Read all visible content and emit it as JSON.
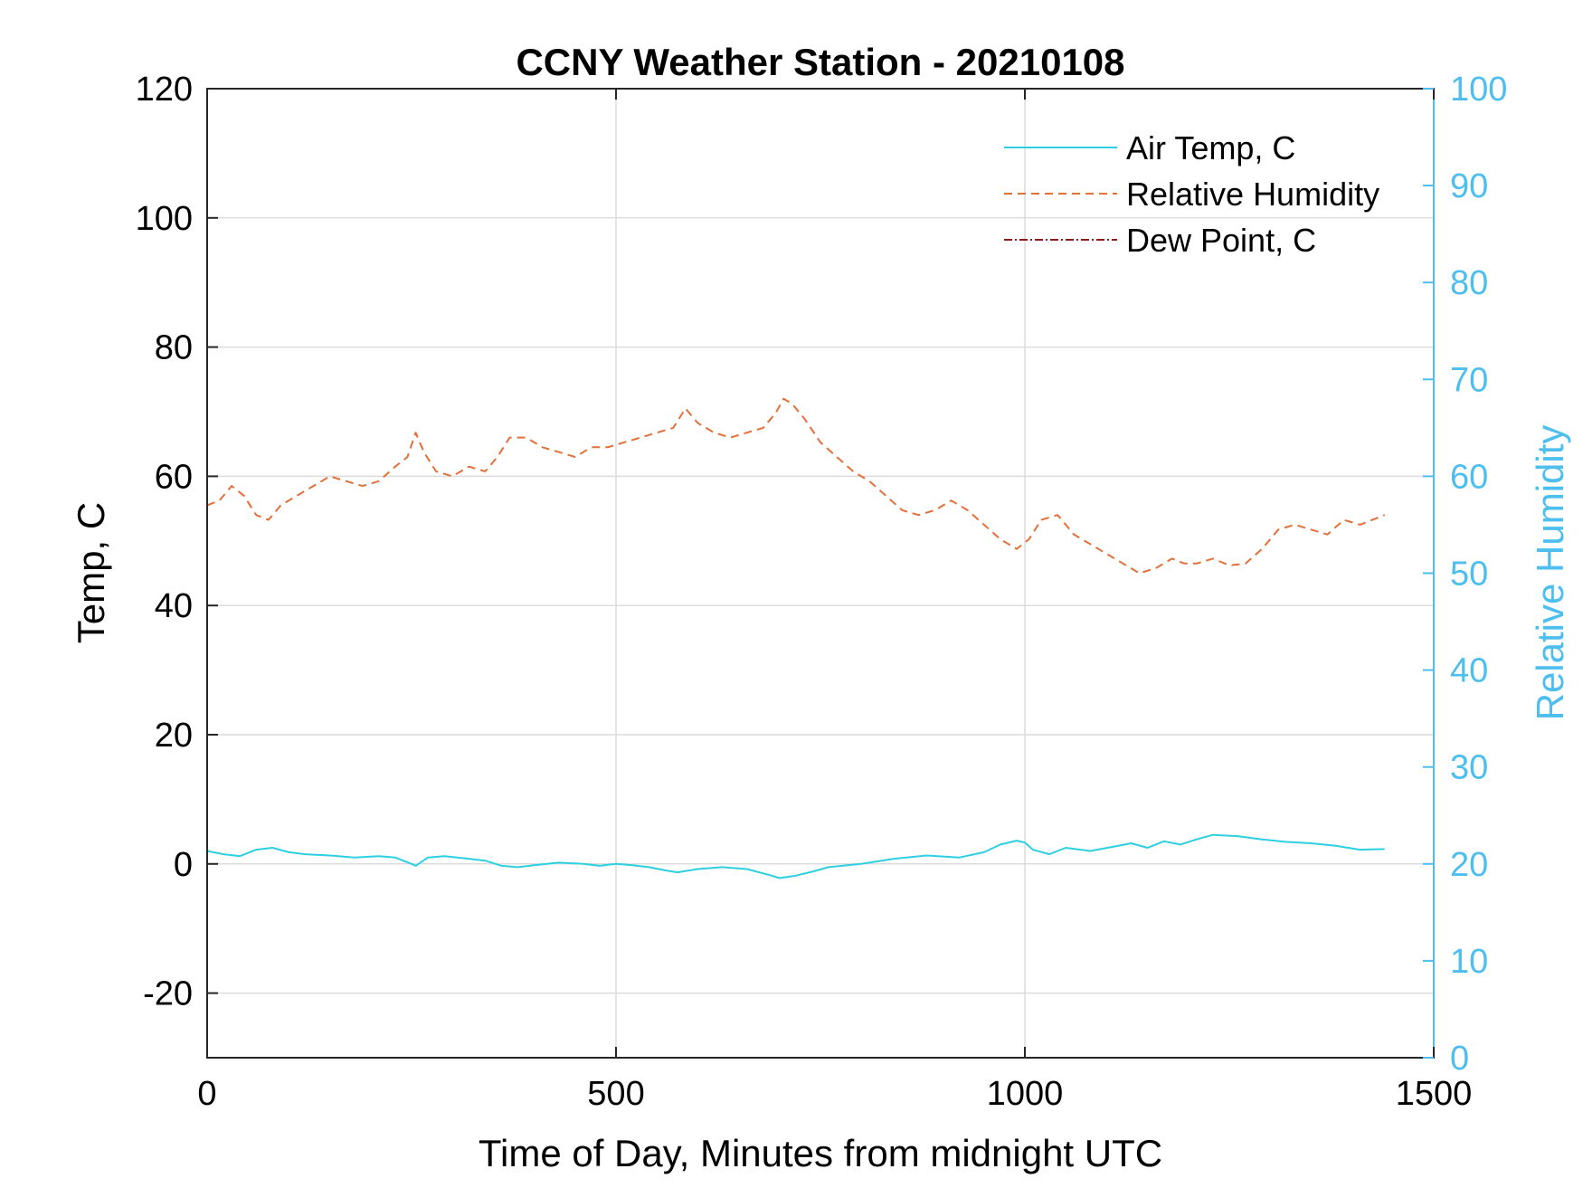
{
  "chart_data": {
    "type": "line",
    "title": "CCNY Weather Station - 20210108",
    "xlabel": "Time of Day, Minutes from midnight UTC",
    "ylabel_left": "Temp, C",
    "ylabel_right": "Relative Humidity",
    "xlim": [
      0,
      1500
    ],
    "ylim_left": [
      -30,
      120
    ],
    "ylim_right": [
      0,
      100
    ],
    "x_ticks": [
      "0",
      "500",
      "1000",
      "1500"
    ],
    "x_tick_values": [
      0,
      500,
      1000,
      1500
    ],
    "y_left_ticks": [
      "-20",
      "0",
      "20",
      "40",
      "60",
      "80",
      "100",
      "120"
    ],
    "y_left_tick_values": [
      -20,
      0,
      20,
      40,
      60,
      80,
      100,
      120
    ],
    "y_right_ticks": [
      "0",
      "10",
      "20",
      "30",
      "40",
      "50",
      "60",
      "70",
      "80",
      "90",
      "100"
    ],
    "y_right_tick_values": [
      0,
      10,
      20,
      30,
      40,
      50,
      60,
      70,
      80,
      90,
      100
    ],
    "grid": true,
    "legend_position": "top-right",
    "colors": {
      "air_temp": "#2ECFE0",
      "humidity": "#E2703A",
      "dew_point": "#8B1A1A",
      "right_axis": "#4DBEEE"
    },
    "series": [
      {
        "name": "Air Temp, C",
        "axis": "left",
        "style": "solid",
        "x": [
          0,
          20,
          40,
          60,
          80,
          100,
          120,
          150,
          180,
          210,
          230,
          250,
          255,
          270,
          290,
          320,
          340,
          360,
          380,
          400,
          430,
          460,
          480,
          500,
          520,
          540,
          560,
          575,
          600,
          630,
          660,
          690,
          700,
          720,
          740,
          760,
          800,
          840,
          880,
          920,
          950,
          970,
          990,
          1000,
          1010,
          1030,
          1050,
          1080,
          1110,
          1130,
          1150,
          1170,
          1190,
          1210,
          1230,
          1260,
          1290,
          1320,
          1350,
          1380,
          1410,
          1440
        ],
        "y": [
          2.0,
          1.5,
          1.2,
          2.2,
          2.5,
          1.8,
          1.5,
          1.3,
          1.0,
          1.2,
          1.0,
          0.0,
          -0.3,
          1.0,
          1.2,
          0.8,
          0.5,
          -0.3,
          -0.5,
          -0.2,
          0.2,
          0.0,
          -0.3,
          0.0,
          -0.2,
          -0.5,
          -1.0,
          -1.3,
          -0.8,
          -0.5,
          -0.8,
          -1.8,
          -2.2,
          -1.8,
          -1.2,
          -0.5,
          0.0,
          0.8,
          1.3,
          1.0,
          1.8,
          3.0,
          3.6,
          3.3,
          2.2,
          1.5,
          2.5,
          2.0,
          2.7,
          3.2,
          2.5,
          3.5,
          3.0,
          3.8,
          4.5,
          4.3,
          3.8,
          3.4,
          3.2,
          2.8,
          2.2,
          2.3
        ]
      },
      {
        "name": "Relative Humidity",
        "axis": "right",
        "style": "dashed",
        "x": [
          0,
          15,
          30,
          45,
          60,
          75,
          90,
          110,
          130,
          150,
          170,
          190,
          210,
          230,
          245,
          255,
          265,
          280,
          300,
          320,
          340,
          355,
          370,
          390,
          410,
          430,
          450,
          470,
          490,
          510,
          530,
          550,
          570,
          585,
          600,
          620,
          640,
          660,
          680,
          695,
          705,
          715,
          730,
          750,
          770,
          790,
          810,
          830,
          850,
          870,
          890,
          910,
          930,
          950,
          970,
          990,
          1005,
          1020,
          1040,
          1060,
          1080,
          1100,
          1120,
          1140,
          1160,
          1180,
          1195,
          1210,
          1230,
          1250,
          1270,
          1290,
          1310,
          1330,
          1350,
          1370,
          1390,
          1410,
          1440
        ],
        "y": [
          57.0,
          57.5,
          59.0,
          58.0,
          56.0,
          55.5,
          57.0,
          58.0,
          59.0,
          60.0,
          59.5,
          59.0,
          59.5,
          61.0,
          62.0,
          64.5,
          62.5,
          60.5,
          60.0,
          61.0,
          60.5,
          62.0,
          64.0,
          64.0,
          63.0,
          62.5,
          62.0,
          63.0,
          63.0,
          63.5,
          64.0,
          64.5,
          65.0,
          67.0,
          65.5,
          64.5,
          64.0,
          64.5,
          65.0,
          66.5,
          68.0,
          67.5,
          66.0,
          63.5,
          62.0,
          60.5,
          59.5,
          58.0,
          56.5,
          56.0,
          56.5,
          57.5,
          56.5,
          55.0,
          53.5,
          52.5,
          53.5,
          55.5,
          56.0,
          54.0,
          53.0,
          52.0,
          51.0,
          50.0,
          50.5,
          51.5,
          51.0,
          51.0,
          51.5,
          50.8,
          51.0,
          52.5,
          54.5,
          55.0,
          54.5,
          54.0,
          55.5,
          55.0,
          56.0
        ]
      },
      {
        "name": "Dew Point, C",
        "axis": "left",
        "style": "dash-dot",
        "x": [],
        "y": []
      }
    ]
  }
}
